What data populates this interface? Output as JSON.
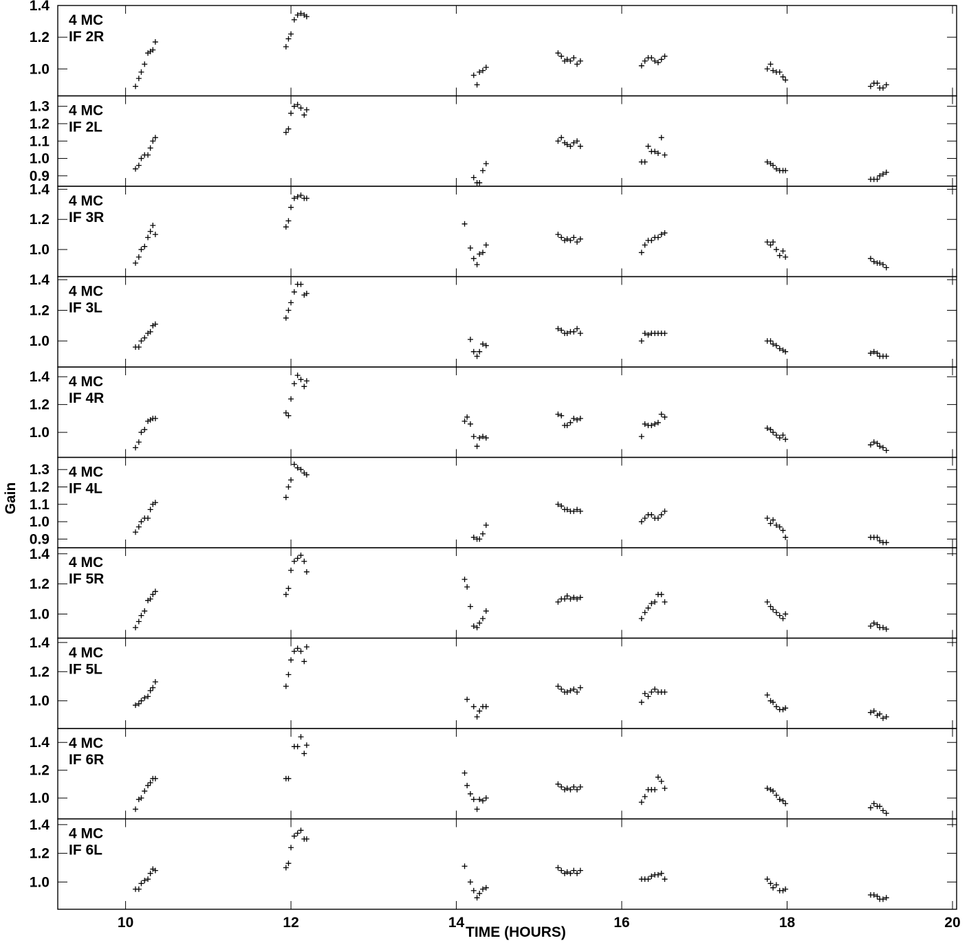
{
  "header": {
    "title": ""
  },
  "chart_data": {
    "type": "scatter",
    "xlabel": "TIME (HOURS)",
    "ylabel": "Gain",
    "xlim": [
      9.18,
      20.05
    ],
    "xticks": [
      10,
      12,
      14,
      16,
      18,
      20
    ],
    "grid": false,
    "panels": [
      {
        "label": [
          "4 MC",
          "IF 2R"
        ],
        "ylim": [
          0.83,
          1.4
        ],
        "yticks": [
          1.0,
          1.2,
          1.4
        ],
        "x": [
          10.12,
          10.16,
          10.19,
          10.23,
          10.27,
          10.3,
          10.33,
          10.36,
          11.94,
          11.97,
          12.0,
          12.04,
          12.08,
          12.12,
          12.16,
          12.19,
          14.21,
          14.25,
          14.28,
          14.32,
          14.36,
          15.23,
          15.27,
          15.31,
          15.34,
          15.38,
          15.42,
          15.46,
          15.5,
          16.24,
          16.28,
          16.32,
          16.36,
          16.4,
          16.44,
          16.48,
          16.52,
          17.76,
          17.8,
          17.83,
          17.87,
          17.91,
          17.95,
          17.98,
          19.01,
          19.05,
          19.09,
          19.12,
          19.16,
          19.2
        ],
        "y": [
          0.89,
          0.94,
          0.98,
          1.03,
          1.1,
          1.11,
          1.12,
          1.17,
          1.14,
          1.19,
          1.22,
          1.31,
          1.34,
          1.35,
          1.34,
          1.33,
          0.96,
          0.9,
          0.98,
          0.99,
          1.01,
          1.1,
          1.08,
          1.05,
          1.06,
          1.05,
          1.07,
          1.03,
          1.05,
          1.02,
          1.05,
          1.07,
          1.07,
          1.05,
          1.04,
          1.06,
          1.08,
          1.0,
          1.03,
          0.99,
          0.98,
          0.98,
          0.95,
          0.93,
          0.89,
          0.91,
          0.91,
          0.88,
          0.88,
          0.9
        ]
      },
      {
        "label": [
          "4 MC",
          "IF 2L"
        ],
        "ylim": [
          0.84,
          1.36
        ],
        "yticks": [
          0.9,
          1.0,
          1.1,
          1.2,
          1.3
        ],
        "x": [
          10.12,
          10.16,
          10.19,
          10.23,
          10.27,
          10.3,
          10.33,
          10.36,
          11.94,
          11.97,
          12.0,
          12.04,
          12.08,
          12.12,
          12.16,
          12.19,
          14.21,
          14.25,
          14.28,
          14.32,
          14.36,
          15.23,
          15.27,
          15.31,
          15.34,
          15.38,
          15.42,
          15.46,
          15.5,
          16.24,
          16.28,
          16.32,
          16.36,
          16.4,
          16.44,
          16.48,
          16.52,
          17.76,
          17.8,
          17.83,
          17.87,
          17.91,
          17.95,
          17.98,
          19.01,
          19.05,
          19.09,
          19.12,
          19.16,
          19.2
        ],
        "y": [
          0.94,
          0.96,
          1.0,
          1.02,
          1.02,
          1.06,
          1.1,
          1.12,
          1.15,
          1.17,
          1.26,
          1.3,
          1.31,
          1.29,
          1.25,
          1.28,
          0.89,
          0.86,
          0.86,
          0.93,
          0.97,
          1.1,
          1.12,
          1.09,
          1.08,
          1.07,
          1.09,
          1.1,
          1.07,
          0.98,
          0.98,
          1.07,
          1.04,
          1.04,
          1.03,
          1.12,
          1.02,
          0.98,
          0.97,
          0.96,
          0.94,
          0.93,
          0.93,
          0.93,
          0.88,
          0.88,
          0.88,
          0.9,
          0.91,
          0.92
        ]
      },
      {
        "label": [
          "4 MC",
          "IF 3R"
        ],
        "ylim": [
          0.82,
          1.42
        ],
        "yticks": [
          1.0,
          1.2,
          1.4
        ],
        "x": [
          10.12,
          10.16,
          10.19,
          10.23,
          10.27,
          10.3,
          10.33,
          10.36,
          11.94,
          11.97,
          12.0,
          12.04,
          12.08,
          12.12,
          12.16,
          12.19,
          14.1,
          14.17,
          14.21,
          14.25,
          14.28,
          14.32,
          14.36,
          15.23,
          15.27,
          15.31,
          15.34,
          15.38,
          15.42,
          15.46,
          15.5,
          16.24,
          16.28,
          16.32,
          16.36,
          16.4,
          16.44,
          16.48,
          16.52,
          17.76,
          17.8,
          17.83,
          17.87,
          17.91,
          17.95,
          17.98,
          19.01,
          19.05,
          19.09,
          19.12,
          19.16,
          19.2
        ],
        "y": [
          0.91,
          0.95,
          1.0,
          1.02,
          1.08,
          1.12,
          1.16,
          1.1,
          1.15,
          1.19,
          1.28,
          1.34,
          1.35,
          1.36,
          1.34,
          1.34,
          1.17,
          1.01,
          0.94,
          0.9,
          0.97,
          0.98,
          1.03,
          1.1,
          1.08,
          1.06,
          1.07,
          1.06,
          1.08,
          1.05,
          1.07,
          0.98,
          1.03,
          1.06,
          1.06,
          1.08,
          1.08,
          1.1,
          1.11,
          1.05,
          1.03,
          1.05,
          1.0,
          0.96,
          0.99,
          0.95,
          0.94,
          0.92,
          0.91,
          0.91,
          0.9,
          0.88
        ]
      },
      {
        "label": [
          "4 MC",
          "IF 3L"
        ],
        "ylim": [
          0.83,
          1.42
        ],
        "yticks": [
          1.0,
          1.2,
          1.4
        ],
        "x": [
          10.12,
          10.16,
          10.19,
          10.23,
          10.27,
          10.3,
          10.33,
          10.36,
          11.94,
          11.97,
          12.0,
          12.04,
          12.08,
          12.12,
          12.16,
          12.19,
          14.17,
          14.21,
          14.25,
          14.28,
          14.32,
          14.36,
          15.23,
          15.27,
          15.31,
          15.34,
          15.38,
          15.42,
          15.46,
          15.5,
          16.24,
          16.28,
          16.32,
          16.36,
          16.4,
          16.44,
          16.48,
          16.52,
          17.76,
          17.8,
          17.83,
          17.87,
          17.91,
          17.95,
          17.98,
          19.01,
          19.05,
          19.09,
          19.12,
          19.16,
          19.2
        ],
        "y": [
          0.96,
          0.96,
          1.0,
          1.02,
          1.05,
          1.06,
          1.1,
          1.11,
          1.15,
          1.2,
          1.25,
          1.32,
          1.37,
          1.37,
          1.3,
          1.31,
          1.01,
          0.93,
          0.9,
          0.93,
          0.98,
          0.97,
          1.08,
          1.07,
          1.05,
          1.05,
          1.06,
          1.06,
          1.08,
          1.05,
          1.0,
          1.05,
          1.04,
          1.05,
          1.05,
          1.05,
          1.05,
          1.05,
          1.0,
          1.0,
          0.98,
          0.97,
          0.95,
          0.94,
          0.93,
          0.92,
          0.93,
          0.92,
          0.9,
          0.9,
          0.9
        ]
      },
      {
        "label": [
          "4 MC",
          "IF 4R"
        ],
        "ylim": [
          0.82,
          1.47
        ],
        "yticks": [
          1.0,
          1.2,
          1.4
        ],
        "x": [
          10.12,
          10.16,
          10.19,
          10.23,
          10.27,
          10.3,
          10.33,
          10.36,
          11.94,
          11.97,
          12.0,
          12.04,
          12.08,
          12.12,
          12.16,
          12.19,
          14.1,
          14.13,
          14.17,
          14.21,
          14.25,
          14.28,
          14.32,
          14.36,
          15.23,
          15.27,
          15.31,
          15.34,
          15.38,
          15.42,
          15.46,
          15.5,
          16.24,
          16.28,
          16.32,
          16.36,
          16.4,
          16.44,
          16.48,
          16.52,
          17.76,
          17.8,
          17.83,
          17.87,
          17.91,
          17.95,
          17.98,
          19.01,
          19.05,
          19.09,
          19.12,
          19.16,
          19.2
        ],
        "y": [
          0.89,
          0.93,
          1.0,
          1.02,
          1.08,
          1.09,
          1.1,
          1.1,
          1.14,
          1.12,
          1.24,
          1.35,
          1.41,
          1.38,
          1.33,
          1.37,
          1.08,
          1.11,
          1.06,
          0.97,
          0.9,
          0.96,
          0.97,
          0.96,
          1.13,
          1.12,
          1.05,
          1.05,
          1.07,
          1.1,
          1.09,
          1.1,
          0.97,
          1.06,
          1.05,
          1.05,
          1.06,
          1.07,
          1.13,
          1.11,
          1.03,
          1.02,
          1.0,
          0.98,
          0.96,
          0.98,
          0.95,
          0.91,
          0.93,
          0.92,
          0.9,
          0.89,
          0.87
        ]
      },
      {
        "label": [
          "4 MC",
          "IF 4L"
        ],
        "ylim": [
          0.85,
          1.37
        ],
        "yticks": [
          0.9,
          1.0,
          1.1,
          1.2,
          1.3
        ],
        "x": [
          10.12,
          10.16,
          10.19,
          10.23,
          10.27,
          10.3,
          10.33,
          10.36,
          11.94,
          11.97,
          12.0,
          12.04,
          12.08,
          12.12,
          12.16,
          12.19,
          14.21,
          14.25,
          14.28,
          14.32,
          14.36,
          15.23,
          15.27,
          15.31,
          15.34,
          15.38,
          15.42,
          15.46,
          15.5,
          16.24,
          16.28,
          16.32,
          16.36,
          16.4,
          16.44,
          16.48,
          16.52,
          17.76,
          17.8,
          17.83,
          17.87,
          17.91,
          17.95,
          17.98,
          19.01,
          19.05,
          19.09,
          19.12,
          19.16,
          19.2
        ],
        "y": [
          0.94,
          0.97,
          1.0,
          1.02,
          1.02,
          1.07,
          1.1,
          1.11,
          1.14,
          1.2,
          1.24,
          1.33,
          1.31,
          1.3,
          1.28,
          1.27,
          0.91,
          0.9,
          0.9,
          0.93,
          0.98,
          1.1,
          1.09,
          1.07,
          1.07,
          1.06,
          1.06,
          1.07,
          1.06,
          1.0,
          1.02,
          1.04,
          1.04,
          1.02,
          1.02,
          1.04,
          1.06,
          1.02,
          0.99,
          1.01,
          0.98,
          0.97,
          0.95,
          0.91,
          0.91,
          0.91,
          0.91,
          0.89,
          0.88,
          0.88
        ]
      },
      {
        "label": [
          "4 MC",
          "IF 5R"
        ],
        "ylim": [
          0.84,
          1.44
        ],
        "yticks": [
          1.0,
          1.2,
          1.4
        ],
        "x": [
          10.12,
          10.16,
          10.19,
          10.23,
          10.27,
          10.3,
          10.33,
          10.36,
          11.94,
          11.97,
          12.0,
          12.04,
          12.08,
          12.12,
          12.16,
          12.19,
          14.1,
          14.13,
          14.17,
          14.21,
          14.25,
          14.28,
          14.32,
          14.36,
          15.23,
          15.27,
          15.31,
          15.34,
          15.38,
          15.42,
          15.46,
          15.5,
          16.24,
          16.28,
          16.32,
          16.36,
          16.4,
          16.44,
          16.48,
          16.52,
          17.76,
          17.8,
          17.83,
          17.87,
          17.91,
          17.95,
          17.98,
          19.01,
          19.05,
          19.09,
          19.12,
          19.16,
          19.2
        ],
        "y": [
          0.91,
          0.95,
          0.99,
          1.02,
          1.09,
          1.1,
          1.13,
          1.15,
          1.13,
          1.17,
          1.29,
          1.35,
          1.37,
          1.39,
          1.35,
          1.28,
          1.23,
          1.18,
          1.05,
          0.92,
          0.91,
          0.94,
          0.97,
          1.02,
          1.08,
          1.1,
          1.1,
          1.12,
          1.1,
          1.11,
          1.1,
          1.11,
          0.97,
          1.01,
          1.04,
          1.07,
          1.08,
          1.13,
          1.13,
          1.08,
          1.08,
          1.05,
          1.03,
          1.01,
          0.99,
          0.97,
          1.0,
          0.92,
          0.94,
          0.93,
          0.91,
          0.91,
          0.9
        ]
      },
      {
        "label": [
          "4 MC",
          "IF 5L"
        ],
        "ylim": [
          0.81,
          1.43
        ],
        "yticks": [
          1.0,
          1.2,
          1.4
        ],
        "x": [
          10.12,
          10.16,
          10.19,
          10.23,
          10.27,
          10.3,
          10.33,
          10.36,
          11.94,
          11.97,
          12.0,
          12.04,
          12.08,
          12.12,
          12.16,
          12.19,
          14.13,
          14.21,
          14.25,
          14.28,
          14.32,
          14.36,
          15.23,
          15.27,
          15.31,
          15.34,
          15.38,
          15.42,
          15.46,
          15.5,
          16.24,
          16.28,
          16.32,
          16.36,
          16.4,
          16.44,
          16.48,
          16.52,
          17.76,
          17.8,
          17.83,
          17.87,
          17.91,
          17.95,
          17.98,
          19.01,
          19.05,
          19.09,
          19.12,
          19.16,
          19.2
        ],
        "y": [
          0.97,
          0.98,
          1.0,
          1.02,
          1.03,
          1.07,
          1.09,
          1.13,
          1.1,
          1.18,
          1.28,
          1.34,
          1.36,
          1.34,
          1.27,
          1.37,
          1.01,
          0.96,
          0.89,
          0.93,
          0.96,
          0.96,
          1.1,
          1.08,
          1.06,
          1.06,
          1.07,
          1.08,
          1.06,
          1.09,
          0.99,
          1.05,
          1.03,
          1.06,
          1.08,
          1.06,
          1.06,
          1.06,
          1.04,
          1.0,
          0.99,
          0.96,
          0.94,
          0.94,
          0.95,
          0.92,
          0.93,
          0.9,
          0.91,
          0.88,
          0.89
        ]
      },
      {
        "label": [
          "4 MC",
          "IF 6R"
        ],
        "ylim": [
          0.85,
          1.5
        ],
        "yticks": [
          1.0,
          1.2,
          1.4
        ],
        "x": [
          10.12,
          10.16,
          10.19,
          10.23,
          10.27,
          10.3,
          10.33,
          10.36,
          11.94,
          11.97,
          12.04,
          12.08,
          12.12,
          12.16,
          12.19,
          14.1,
          14.13,
          14.17,
          14.21,
          14.25,
          14.28,
          14.32,
          14.36,
          15.23,
          15.27,
          15.31,
          15.34,
          15.38,
          15.42,
          15.46,
          15.5,
          16.24,
          16.28,
          16.32,
          16.36,
          16.4,
          16.44,
          16.48,
          16.52,
          17.76,
          17.8,
          17.83,
          17.87,
          17.91,
          17.95,
          17.98,
          19.01,
          19.05,
          19.09,
          19.12,
          19.16,
          19.2
        ],
        "y": [
          0.92,
          0.99,
          1.0,
          1.05,
          1.09,
          1.11,
          1.14,
          1.14,
          1.14,
          1.14,
          1.37,
          1.37,
          1.44,
          1.32,
          1.38,
          1.18,
          1.09,
          1.03,
          0.99,
          0.92,
          0.99,
          0.98,
          1.0,
          1.1,
          1.08,
          1.06,
          1.07,
          1.06,
          1.08,
          1.06,
          1.08,
          0.97,
          1.01,
          1.06,
          1.06,
          1.06,
          1.15,
          1.12,
          1.07,
          1.07,
          1.06,
          1.05,
          1.02,
          0.99,
          0.98,
          0.96,
          0.93,
          0.96,
          0.94,
          0.94,
          0.91,
          0.89
        ]
      },
      {
        "label": [
          "4 MC",
          "IF 6L"
        ],
        "ylim": [
          0.81,
          1.44
        ],
        "yticks": [
          1.0,
          1.2,
          1.4
        ],
        "x": [
          10.12,
          10.16,
          10.19,
          10.23,
          10.27,
          10.3,
          10.33,
          10.36,
          11.94,
          11.97,
          12.0,
          12.04,
          12.08,
          12.12,
          12.16,
          12.19,
          14.1,
          14.17,
          14.21,
          14.25,
          14.28,
          14.32,
          14.36,
          15.23,
          15.27,
          15.31,
          15.34,
          15.38,
          15.42,
          15.46,
          15.5,
          16.24,
          16.28,
          16.32,
          16.36,
          16.4,
          16.44,
          16.48,
          16.52,
          17.76,
          17.8,
          17.83,
          17.87,
          17.91,
          17.95,
          17.98,
          19.01,
          19.05,
          19.09,
          19.12,
          19.16,
          19.2
        ],
        "y": [
          0.95,
          0.95,
          0.99,
          1.01,
          1.02,
          1.06,
          1.09,
          1.08,
          1.1,
          1.13,
          1.24,
          1.32,
          1.34,
          1.36,
          1.3,
          1.3,
          1.11,
          1.0,
          0.94,
          0.89,
          0.92,
          0.95,
          0.96,
          1.1,
          1.08,
          1.06,
          1.07,
          1.06,
          1.08,
          1.06,
          1.08,
          1.02,
          1.02,
          1.02,
          1.04,
          1.05,
          1.05,
          1.06,
          1.02,
          1.02,
          0.99,
          0.96,
          0.98,
          0.94,
          0.94,
          0.95,
          0.91,
          0.91,
          0.9,
          0.88,
          0.88,
          0.89
        ]
      }
    ]
  }
}
